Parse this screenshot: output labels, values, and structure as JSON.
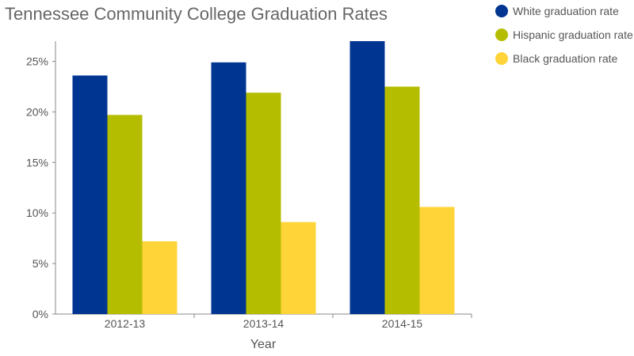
{
  "chart_data": {
    "type": "bar",
    "title": "Tennessee Community College Graduation Rates",
    "xlabel": "Year",
    "ylabel": "",
    "categories": [
      "2012-13",
      "2013-14",
      "2014-15"
    ],
    "series": [
      {
        "name": "White graduation rate",
        "color": "#003591",
        "values": [
          23.6,
          24.9,
          27.0
        ]
      },
      {
        "name": "Hispanic graduation rate",
        "color": "#b5bd00",
        "values": [
          19.7,
          21.9,
          22.5
        ]
      },
      {
        "name": "Black graduation rate",
        "color": "#ffd438",
        "values": [
          7.2,
          9.1,
          10.6
        ]
      }
    ],
    "yticks": [
      "0%",
      "5%",
      "10%",
      "15%",
      "20%",
      "25%"
    ],
    "ylim": [
      0,
      27
    ],
    "grid": false,
    "legend_position": "top-right"
  }
}
